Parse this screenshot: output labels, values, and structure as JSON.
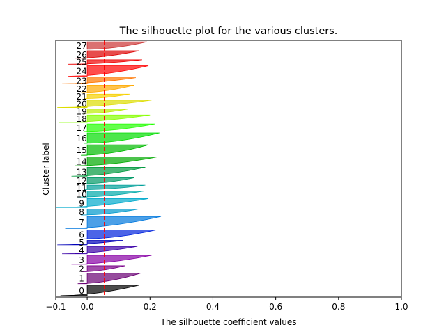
{
  "chart_data": {
    "type": "area",
    "title": "The silhouette plot for the various clusters.",
    "xlabel": "The silhouette coefficient values",
    "ylabel": "Cluster label",
    "xlim": [
      -0.1,
      1.0
    ],
    "xticks": [
      -0.1,
      0.0,
      0.2,
      0.4,
      0.6,
      0.8,
      1.0
    ],
    "xtick_labels": [
      "−0.1",
      "0.0",
      "0.2",
      "0.4",
      "0.6",
      "0.8",
      "1.0"
    ],
    "average_silhouette_score": 0.055,
    "average_line_color": "#ff0000",
    "grid": false,
    "series": [
      {
        "name": "0",
        "size": 14,
        "min": -0.085,
        "max": 0.165,
        "color": "#000000"
      },
      {
        "name": "1",
        "size": 14,
        "min": -0.03,
        "max": 0.17,
        "color": "#6a0073"
      },
      {
        "name": "2",
        "size": 8,
        "min": -0.02,
        "max": 0.12,
        "color": "#7a0088"
      },
      {
        "name": "3",
        "size": 12,
        "min": -0.05,
        "max": 0.205,
        "color": "#8800a5"
      },
      {
        "name": "4",
        "size": 10,
        "min": -0.08,
        "max": 0.16,
        "color": "#3a00a8"
      },
      {
        "name": "5",
        "size": 6,
        "min": -0.095,
        "max": 0.115,
        "color": "#0000b8"
      },
      {
        "name": "6",
        "size": 12,
        "min": -0.01,
        "max": 0.22,
        "color": "#0022dd"
      },
      {
        "name": "7",
        "size": 16,
        "min": -0.07,
        "max": 0.235,
        "color": "#0077dd"
      },
      {
        "name": "8",
        "size": 8,
        "min": -0.02,
        "max": 0.165,
        "color": "#0099cc"
      },
      {
        "name": "9",
        "size": 12,
        "min": -0.1,
        "max": 0.195,
        "color": "#00aacc"
      },
      {
        "name": "10",
        "size": 8,
        "min": -0.03,
        "max": 0.18,
        "color": "#00aaaa"
      },
      {
        "name": "11",
        "size": 6,
        "min": -0.01,
        "max": 0.185,
        "color": "#00a09a"
      },
      {
        "name": "12",
        "size": 8,
        "min": -0.01,
        "max": 0.15,
        "color": "#009966"
      },
      {
        "name": "13",
        "size": 12,
        "min": -0.05,
        "max": 0.185,
        "color": "#00993d"
      },
      {
        "name": "14",
        "size": 12,
        "min": -0.04,
        "max": 0.225,
        "color": "#00aa00"
      },
      {
        "name": "15",
        "size": 14,
        "min": -0.02,
        "max": 0.195,
        "color": "#00bb00"
      },
      {
        "name": "16",
        "size": 14,
        "min": -0.01,
        "max": 0.23,
        "color": "#00dd00"
      },
      {
        "name": "17",
        "size": 10,
        "min": -0.01,
        "max": 0.215,
        "color": "#22ff00"
      },
      {
        "name": "18",
        "size": 10,
        "min": -0.09,
        "max": 0.2,
        "color": "#88ff00"
      },
      {
        "name": "19",
        "size": 6,
        "min": -0.01,
        "max": 0.13,
        "color": "#bbee00"
      },
      {
        "name": "20",
        "size": 10,
        "min": -0.095,
        "max": 0.205,
        "color": "#dddd00"
      },
      {
        "name": "21",
        "size": 6,
        "min": -0.01,
        "max": 0.135,
        "color": "#f6d000"
      },
      {
        "name": "22",
        "size": 10,
        "min": -0.02,
        "max": 0.15,
        "color": "#ffaa00"
      },
      {
        "name": "23",
        "size": 8,
        "min": -0.08,
        "max": 0.155,
        "color": "#ff7700"
      },
      {
        "name": "24",
        "size": 14,
        "min": -0.06,
        "max": 0.195,
        "color": "#ff0000"
      },
      {
        "name": "25",
        "size": 6,
        "min": -0.06,
        "max": 0.175,
        "color": "#ee0000"
      },
      {
        "name": "26",
        "size": 10,
        "min": -0.04,
        "max": 0.165,
        "color": "#dd0000"
      },
      {
        "name": "27",
        "size": 10,
        "min": 0.0,
        "max": 0.19,
        "color": "#cc3333"
      }
    ]
  }
}
